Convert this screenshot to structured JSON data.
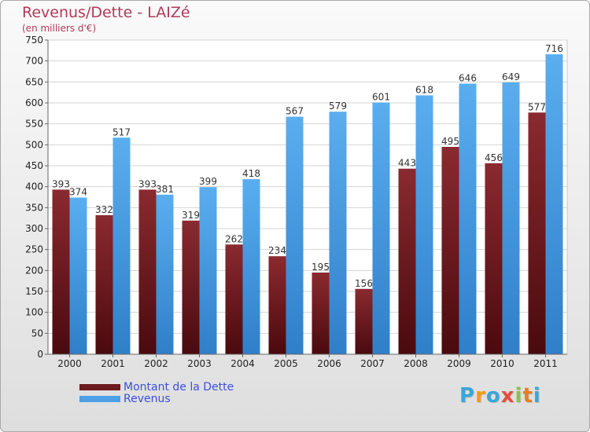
{
  "header": {
    "title": "Revenus/Dette - LAIZé",
    "subtitle": "(en milliers d'€)"
  },
  "legend": [
    {
      "label": "Montant de la Dette",
      "color": "#6b1a1e"
    },
    {
      "label": "Revenus",
      "color": "#4f9fe6"
    }
  ],
  "logo": {
    "letters": [
      "P",
      "r",
      "o",
      "x",
      "i",
      "t",
      "i"
    ],
    "colors": [
      "#3aa6d8",
      "#f39c12",
      "#3aa6d8",
      "#e74c3c",
      "#8bc34a",
      "#e67e22",
      "#3aa6d8"
    ]
  },
  "chart_data": {
    "type": "bar",
    "title": "Revenus/Dette - LAIZé",
    "ylabel": "(en milliers d'€)",
    "categories": [
      "2000",
      "2001",
      "2002",
      "2003",
      "2004",
      "2005",
      "2006",
      "2007",
      "2008",
      "2009",
      "2010",
      "2011"
    ],
    "series": [
      {
        "name": "Montant de la Dette",
        "color": "#6b1a1e",
        "values": [
          393,
          332,
          393,
          319,
          262,
          234,
          195,
          156,
          443,
          495,
          456,
          577
        ]
      },
      {
        "name": "Revenus",
        "color": "#4f9fe6",
        "values": [
          374,
          517,
          381,
          399,
          418,
          567,
          579,
          601,
          618,
          646,
          649,
          716
        ]
      }
    ],
    "ylim": [
      0,
      750
    ],
    "yticks": [
      0,
      50,
      100,
      150,
      200,
      250,
      300,
      350,
      400,
      450,
      500,
      550,
      600,
      650,
      700,
      750
    ],
    "grid": true
  }
}
